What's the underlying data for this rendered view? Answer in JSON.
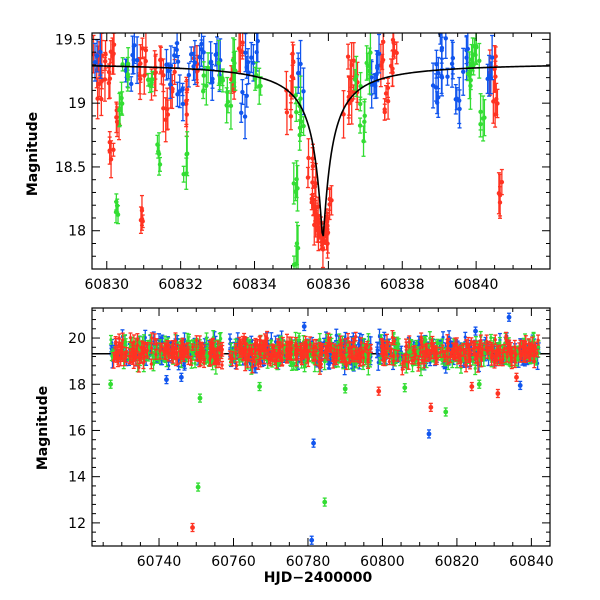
{
  "chart_data": [
    {
      "type": "scatter",
      "panel": "top",
      "title": "",
      "xlabel": "",
      "ylabel": "Magnitude",
      "xlim": [
        60829.6,
        60842.0
      ],
      "ylim": [
        19.55,
        17.7
      ],
      "y_inverted": true,
      "grid": false,
      "legend": "none",
      "x_ticks": [
        60830,
        60832,
        60834,
        60836,
        60838,
        60840
      ],
      "x_tick_labels": [
        "60830",
        "60832",
        "60834",
        "60836",
        "60838",
        "60840"
      ],
      "y_ticks": [
        18,
        18.5,
        19,
        19.5
      ],
      "y_tick_labels": [
        "18",
        "18.5",
        "19",
        "19.5"
      ],
      "colors": {
        "green": "#33dd33",
        "blue": "#1155ee",
        "red": "#ff3322",
        "model": "#000000"
      },
      "model_curve": {
        "description": "black line",
        "peak_x": 60835.85,
        "peak_y": 17.92,
        "baseline_y": 19.32
      },
      "series": [
        {
          "color": "red",
          "points": [
            [
              60829.7,
              19.3
            ],
            [
              60829.8,
              19.1
            ],
            [
              60829.9,
              19.4
            ],
            [
              60830.0,
              19.2
            ],
            [
              60830.1,
              18.65
            ],
            [
              60830.2,
              19.45
            ],
            [
              60830.25,
              18.9
            ],
            [
              60830.9,
              18.05
            ],
            [
              60830.95,
              19.2
            ],
            [
              60831.0,
              19.35
            ],
            [
              60831.3,
              19.2
            ],
            [
              60831.5,
              19.3
            ],
            [
              60831.6,
              18.95
            ],
            [
              60831.8,
              19.2
            ],
            [
              60832.2,
              19.0
            ],
            [
              60832.4,
              19.3
            ],
            [
              60833.4,
              19.2
            ],
            [
              60833.6,
              19.45
            ],
            [
              60834.9,
              19.0
            ],
            [
              60835.0,
              19.3
            ],
            [
              60835.5,
              18.5
            ],
            [
              60835.6,
              18.3
            ],
            [
              60835.7,
              18.1
            ],
            [
              60835.8,
              17.95
            ],
            [
              60835.9,
              17.92
            ],
            [
              60836.0,
              18.2
            ],
            [
              60836.5,
              19.0
            ],
            [
              60836.6,
              19.3
            ],
            [
              60836.7,
              19.1
            ],
            [
              60837.5,
              19.4
            ],
            [
              60837.6,
              19.0
            ],
            [
              60837.7,
              19.2
            ],
            [
              60837.8,
              19.5
            ],
            [
              60840.45,
              19.3
            ],
            [
              60840.55,
              19.0
            ],
            [
              60840.65,
              18.3
            ]
          ]
        },
        {
          "color": "blue",
          "points": [
            [
              60829.75,
              19.3
            ],
            [
              60830.6,
              19.2
            ],
            [
              60830.75,
              19.4
            ],
            [
              60831.7,
              19.2
            ],
            [
              60831.85,
              19.4
            ],
            [
              60832.0,
              19.1
            ],
            [
              60832.3,
              19.3
            ],
            [
              60832.6,
              19.4
            ],
            [
              60832.8,
              19.25
            ],
            [
              60833.0,
              19.3
            ],
            [
              60833.7,
              19.0
            ],
            [
              60833.8,
              19.3
            ],
            [
              60834.0,
              19.4
            ],
            [
              60835.25,
              19.2
            ],
            [
              60837.2,
              19.1
            ],
            [
              60837.3,
              19.3
            ],
            [
              60838.9,
              19.1
            ],
            [
              60839.0,
              19.3
            ],
            [
              60839.1,
              19.45
            ],
            [
              60839.3,
              19.3
            ],
            [
              60839.5,
              19.0
            ],
            [
              60839.7,
              19.35
            ],
            [
              60840.4,
              19.3
            ]
          ]
        },
        {
          "color": "green",
          "points": [
            [
              60830.3,
              18.15
            ],
            [
              60830.4,
              19.0
            ],
            [
              60830.5,
              19.3
            ],
            [
              60831.2,
              19.1
            ],
            [
              60831.4,
              18.6
            ],
            [
              60832.15,
              18.55
            ],
            [
              60832.7,
              19.2
            ],
            [
              60833.1,
              19.25
            ],
            [
              60833.3,
              19.0
            ],
            [
              60833.5,
              19.3
            ],
            [
              60834.1,
              19.2
            ],
            [
              60835.1,
              17.8
            ],
            [
              60835.15,
              18.35
            ],
            [
              60835.2,
              19.0
            ],
            [
              60835.3,
              18.8
            ],
            [
              60836.8,
              19.1
            ],
            [
              60836.9,
              18.8
            ],
            [
              60837.1,
              19.3
            ],
            [
              60839.8,
              19.2
            ],
            [
              60839.9,
              19.35
            ],
            [
              60840.0,
              19.4
            ],
            [
              60840.2,
              18.9
            ]
          ]
        }
      ]
    },
    {
      "type": "scatter",
      "panel": "bottom",
      "title": "",
      "xlabel": "HJD−2400000",
      "ylabel": "Magnitude",
      "xlim": [
        60722,
        60845
      ],
      "ylim": [
        21.3,
        11.0
      ],
      "y_inverted": true,
      "grid": false,
      "legend": "none",
      "x_ticks": [
        60740,
        60760,
        60780,
        60800,
        60820,
        60840
      ],
      "x_tick_labels": [
        "60740",
        "60760",
        "60780",
        "60800",
        "60820",
        "60840"
      ],
      "y_ticks": [
        12,
        14,
        16,
        18,
        20
      ],
      "y_tick_labels": [
        "12",
        "14",
        "16",
        "18",
        "20"
      ],
      "model_curve": {
        "description": "black horizontal line",
        "y": 19.32
      },
      "dense_band": {
        "x_range": [
          60727,
          60842
        ],
        "y_center": 19.4,
        "y_spread": 0.5
      },
      "outliers": [
        {
          "color": "red",
          "x": 60749,
          "y": 11.8
        },
        {
          "color": "green",
          "x": 60750.5,
          "y": 13.55
        },
        {
          "color": "blue",
          "x": 60781,
          "y": 11.25
        },
        {
          "color": "green",
          "x": 60784.5,
          "y": 12.9
        },
        {
          "color": "blue",
          "x": 60781.5,
          "y": 15.45
        },
        {
          "color": "blue",
          "x": 60812.5,
          "y": 15.85
        },
        {
          "color": "red",
          "x": 60813,
          "y": 17.0
        },
        {
          "color": "green",
          "x": 60817,
          "y": 16.8
        },
        {
          "color": "green",
          "x": 60751,
          "y": 17.4
        },
        {
          "color": "blue",
          "x": 60742,
          "y": 18.2
        },
        {
          "color": "blue",
          "x": 60746,
          "y": 18.3
        },
        {
          "color": "green",
          "x": 60727,
          "y": 18.0
        },
        {
          "color": "green",
          "x": 60767,
          "y": 17.9
        },
        {
          "color": "green",
          "x": 60790,
          "y": 17.8
        },
        {
          "color": "red",
          "x": 60799,
          "y": 17.7
        },
        {
          "color": "green",
          "x": 60806,
          "y": 17.85
        },
        {
          "color": "red",
          "x": 60824,
          "y": 17.9
        },
        {
          "color": "green",
          "x": 60826,
          "y": 18.0
        },
        {
          "color": "red",
          "x": 60831,
          "y": 17.6
        },
        {
          "color": "blue",
          "x": 60837,
          "y": 17.95
        },
        {
          "color": "red",
          "x": 60836,
          "y": 18.3
        },
        {
          "color": "blue",
          "x": 60779,
          "y": 20.5
        },
        {
          "color": "blue",
          "x": 60834,
          "y": 20.9
        },
        {
          "color": "blue",
          "x": 60825,
          "y": 20.3
        }
      ]
    }
  ]
}
